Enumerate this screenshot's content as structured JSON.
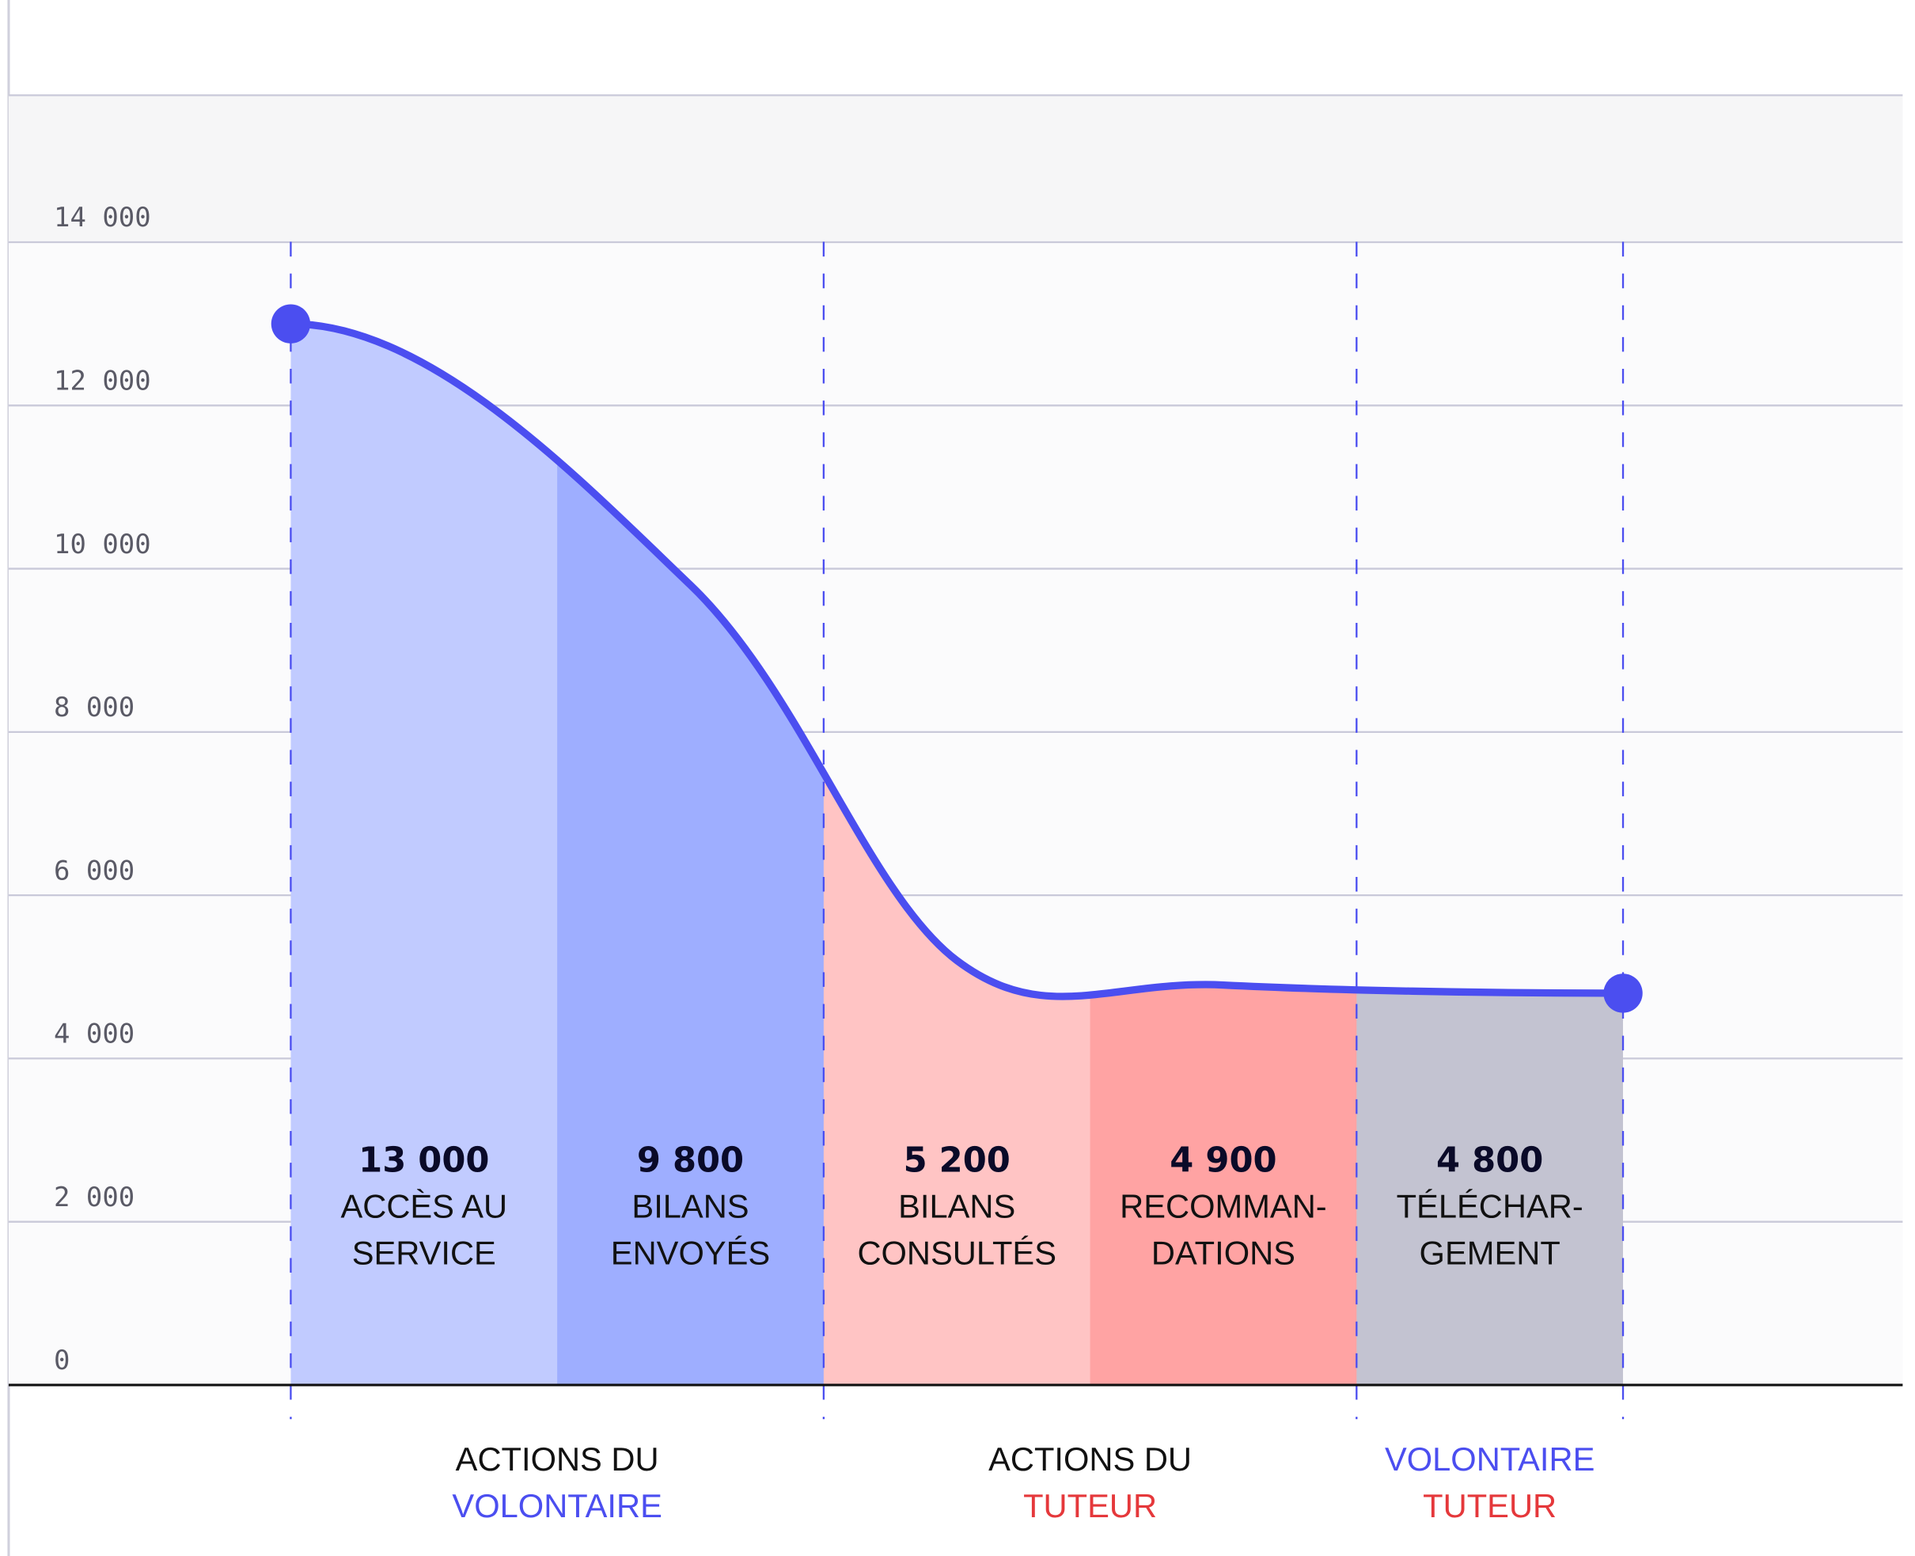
{
  "chart_data": {
    "type": "funnel-area",
    "categories": [
      [
        "ACCÈS AU",
        "SERVICE"
      ],
      [
        "BILANS",
        "ENVOYÉS"
      ],
      [
        "BILANS",
        "CONSULTÉS"
      ],
      [
        "RECOMMAN-",
        "DATIONS"
      ],
      [
        "TÉLÉCHAR-",
        "GEMENT"
      ]
    ],
    "values": [
      13000,
      9800,
      5200,
      4900,
      4800
    ],
    "value_labels": [
      "13 000",
      "9 800",
      "5 200",
      "4 900",
      "4 800"
    ],
    "colors": [
      "#c1cbff",
      "#9eaeff",
      "#ffc4c4",
      "#ffa3a3",
      "#c3c3d1"
    ],
    "line_color": "#4b4ef0",
    "ylim": [
      0,
      15800
    ],
    "yticks": [
      0,
      {
        "value": 2000,
        "label": "2 000"
      },
      {
        "value": 4000,
        "label": "4 000"
      },
      {
        "value": 6000,
        "label": "6 000"
      },
      {
        "value": 8000,
        "label": "8 000"
      },
      {
        "value": 10000,
        "label": "10 000"
      },
      {
        "value": 12000,
        "label": "12 000"
      },
      {
        "value": 14000,
        "label": "14 000"
      }
    ],
    "grid": true,
    "groups": [
      {
        "lines": [
          {
            "text": "ACTIONS DU",
            "color": "#111111"
          },
          {
            "text": "VOLONTAIRE",
            "color": "#4b4ef0"
          }
        ]
      },
      {
        "lines": [
          {
            "text": "ACTIONS DU",
            "color": "#111111"
          },
          {
            "text": "TUTEUR",
            "color": "#e5383b"
          }
        ]
      },
      {
        "lines": [
          {
            "text": "VOLONTAIRE",
            "color": "#4b4ef0"
          },
          {
            "text": "TUTEUR",
            "color": "#e5383b"
          }
        ]
      }
    ]
  }
}
